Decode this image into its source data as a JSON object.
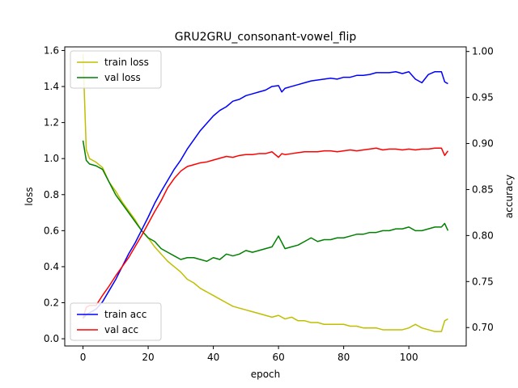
{
  "chart_data": {
    "type": "line",
    "title": "GRU2GRU_consonant-vowel_flip",
    "xlabel": "epoch",
    "ylabel_left": "loss",
    "ylabel_right": "accuracy",
    "xlim": [
      -5.6,
      117.6
    ],
    "ylim_left": [
      -0.04,
      1.62
    ],
    "ylim_right": [
      0.68,
      1.005
    ],
    "xticks": [
      0,
      20,
      40,
      60,
      80,
      100
    ],
    "yticks_left": [
      0.0,
      0.2,
      0.4,
      0.6,
      0.8,
      1.0,
      1.2,
      1.4,
      1.6
    ],
    "yticks_right": [
      0.7,
      0.75,
      0.8,
      0.85,
      0.9,
      0.95,
      1.0
    ],
    "yticks_left_labels": [
      "0.0",
      "0.2",
      "0.4",
      "0.6",
      "0.8",
      "1.0",
      "1.2",
      "1.4",
      "1.6"
    ],
    "yticks_right_labels": [
      "0.70",
      "0.75",
      "0.80",
      "0.85",
      "0.90",
      "0.95",
      "1.00"
    ],
    "grid": false,
    "legend_left": {
      "placement": "upper-left",
      "entries": [
        "train loss",
        "val loss"
      ]
    },
    "legend_right": {
      "placement": "lower-left",
      "entries": [
        "train acc",
        "val acc"
      ]
    },
    "series": [
      {
        "name": "train loss",
        "axis": "left",
        "color": "#bfbf00",
        "x": [
          0,
          1,
          2,
          4,
          6,
          8,
          10,
          12,
          14,
          16,
          18,
          20,
          22,
          24,
          26,
          28,
          30,
          32,
          34,
          36,
          38,
          40,
          42,
          44,
          46,
          48,
          50,
          52,
          54,
          56,
          58,
          60,
          62,
          64,
          66,
          68,
          70,
          72,
          74,
          76,
          78,
          80,
          82,
          84,
          86,
          88,
          90,
          92,
          94,
          96,
          98,
          100,
          102,
          104,
          106,
          108,
          110,
          111,
          112
        ],
        "values": [
          1.58,
          1.05,
          1.0,
          0.98,
          0.95,
          0.87,
          0.82,
          0.76,
          0.71,
          0.66,
          0.6,
          0.56,
          0.51,
          0.47,
          0.43,
          0.4,
          0.37,
          0.33,
          0.31,
          0.28,
          0.26,
          0.24,
          0.22,
          0.2,
          0.18,
          0.17,
          0.16,
          0.15,
          0.14,
          0.13,
          0.12,
          0.13,
          0.11,
          0.12,
          0.1,
          0.1,
          0.09,
          0.09,
          0.08,
          0.08,
          0.08,
          0.08,
          0.07,
          0.07,
          0.06,
          0.06,
          0.06,
          0.05,
          0.05,
          0.05,
          0.05,
          0.06,
          0.08,
          0.06,
          0.05,
          0.04,
          0.04,
          0.1,
          0.11
        ]
      },
      {
        "name": "val loss",
        "axis": "left",
        "color": "#008000",
        "x": [
          0,
          1,
          2,
          4,
          6,
          8,
          10,
          12,
          14,
          16,
          18,
          20,
          22,
          24,
          26,
          28,
          30,
          32,
          34,
          36,
          38,
          40,
          42,
          44,
          46,
          48,
          50,
          52,
          54,
          56,
          58,
          60,
          62,
          64,
          66,
          68,
          70,
          72,
          74,
          76,
          78,
          80,
          82,
          84,
          86,
          88,
          90,
          92,
          94,
          96,
          98,
          100,
          102,
          104,
          106,
          108,
          110,
          111,
          112
        ],
        "values": [
          1.1,
          0.99,
          0.97,
          0.96,
          0.94,
          0.87,
          0.8,
          0.75,
          0.7,
          0.65,
          0.6,
          0.56,
          0.54,
          0.5,
          0.48,
          0.46,
          0.44,
          0.45,
          0.45,
          0.44,
          0.43,
          0.45,
          0.44,
          0.47,
          0.46,
          0.47,
          0.49,
          0.48,
          0.49,
          0.5,
          0.51,
          0.57,
          0.5,
          0.51,
          0.52,
          0.54,
          0.56,
          0.54,
          0.55,
          0.55,
          0.56,
          0.56,
          0.57,
          0.58,
          0.58,
          0.59,
          0.59,
          0.6,
          0.6,
          0.61,
          0.61,
          0.62,
          0.6,
          0.6,
          0.61,
          0.62,
          0.62,
          0.64,
          0.6
        ]
      },
      {
        "name": "train acc",
        "axis": "right",
        "color": "#0000ff",
        "x": [
          0,
          1,
          2,
          4,
          6,
          8,
          10,
          12,
          14,
          16,
          18,
          20,
          22,
          24,
          26,
          28,
          30,
          32,
          34,
          36,
          38,
          40,
          42,
          44,
          46,
          48,
          50,
          52,
          54,
          56,
          58,
          60,
          61,
          62,
          64,
          66,
          68,
          70,
          72,
          74,
          76,
          78,
          80,
          82,
          84,
          86,
          88,
          90,
          92,
          94,
          96,
          98,
          100,
          102,
          104,
          106,
          108,
          110,
          111,
          112
        ],
        "values": [
          0.71,
          0.714,
          0.716,
          0.72,
          0.728,
          0.74,
          0.752,
          0.766,
          0.78,
          0.792,
          0.806,
          0.82,
          0.835,
          0.848,
          0.86,
          0.872,
          0.882,
          0.894,
          0.904,
          0.914,
          0.922,
          0.93,
          0.936,
          0.94,
          0.946,
          0.948,
          0.952,
          0.954,
          0.956,
          0.958,
          0.962,
          0.963,
          0.956,
          0.96,
          0.962,
          0.964,
          0.966,
          0.968,
          0.969,
          0.97,
          0.971,
          0.97,
          0.972,
          0.972,
          0.974,
          0.974,
          0.975,
          0.977,
          0.977,
          0.977,
          0.978,
          0.976,
          0.978,
          0.97,
          0.966,
          0.975,
          0.978,
          0.978,
          0.967,
          0.965
        ]
      },
      {
        "name": "val acc",
        "axis": "right",
        "color": "#ff0000",
        "x": [
          0,
          1,
          2,
          4,
          6,
          8,
          10,
          12,
          14,
          16,
          18,
          20,
          22,
          24,
          26,
          28,
          30,
          32,
          34,
          36,
          38,
          40,
          42,
          44,
          46,
          48,
          50,
          52,
          54,
          56,
          58,
          60,
          61,
          62,
          64,
          66,
          68,
          70,
          72,
          74,
          76,
          78,
          80,
          82,
          84,
          86,
          88,
          90,
          92,
          94,
          96,
          98,
          100,
          102,
          104,
          106,
          108,
          110,
          111,
          112
        ],
        "values": [
          0.71,
          0.722,
          0.724,
          0.724,
          0.735,
          0.745,
          0.756,
          0.766,
          0.776,
          0.788,
          0.8,
          0.813,
          0.826,
          0.838,
          0.852,
          0.862,
          0.87,
          0.875,
          0.877,
          0.879,
          0.88,
          0.882,
          0.884,
          0.886,
          0.885,
          0.887,
          0.888,
          0.888,
          0.889,
          0.889,
          0.891,
          0.885,
          0.889,
          0.888,
          0.889,
          0.89,
          0.891,
          0.891,
          0.891,
          0.892,
          0.892,
          0.891,
          0.892,
          0.893,
          0.892,
          0.893,
          0.894,
          0.895,
          0.893,
          0.894,
          0.894,
          0.893,
          0.894,
          0.893,
          0.894,
          0.894,
          0.895,
          0.895,
          0.887,
          0.892
        ]
      }
    ]
  }
}
